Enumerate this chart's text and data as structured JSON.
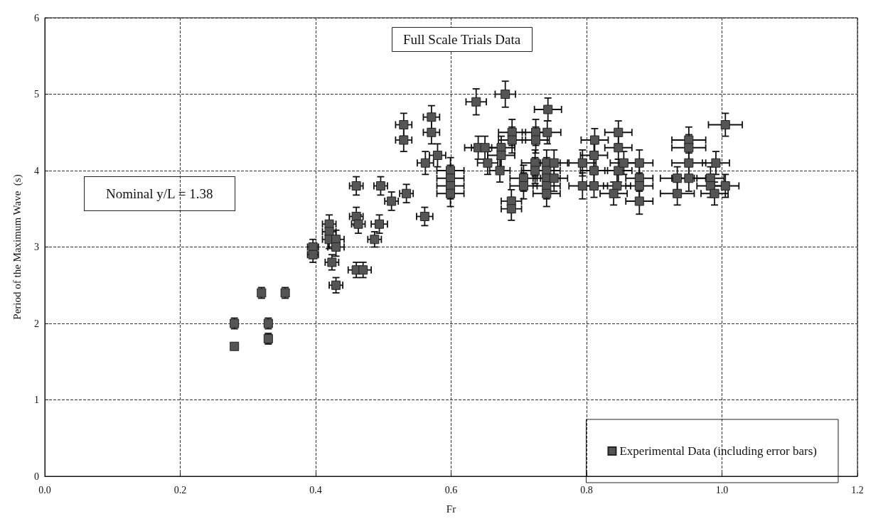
{
  "chart_data": {
    "type": "scatter",
    "title": "Full Scale Trials Data",
    "xlabel": "Fr",
    "ylabel": "Period of the Maximum Wave  (s)",
    "annotations": [
      "Nominal y/L = 1.38"
    ],
    "xlim": [
      0,
      1.2
    ],
    "xticks": [
      {
        "value": 0,
        "label": "0.0"
      },
      {
        "value": 0.2,
        "label": "0.2"
      },
      {
        "value": 0.4,
        "label": "0.4"
      },
      {
        "value": 0.6,
        "label": "0.6"
      },
      {
        "value": 0.8,
        "label": "0.8"
      },
      {
        "value": 1,
        "label": "1.0"
      },
      {
        "value": 1.2,
        "label": "1.2"
      }
    ],
    "ylim": [
      0,
      6
    ],
    "yticks": [
      0,
      1,
      2,
      3,
      4,
      5,
      6
    ],
    "grid": true,
    "legend": "bottom right",
    "marker": "square",
    "series": [
      {
        "name": "Experimental Data (including error bars)",
        "color": "#555555",
        "x": [
          0.28,
          0.28,
          0.32,
          0.33,
          0.33,
          0.355,
          0.396,
          0.396,
          0.42,
          0.42,
          0.42,
          0.43,
          0.43,
          0.424,
          0.43,
          0.46,
          0.47,
          0.46,
          0.463,
          0.494,
          0.487,
          0.46,
          0.496,
          0.512,
          0.534,
          0.53,
          0.53,
          0.571,
          0.571,
          0.58,
          0.562,
          0.599,
          0.599,
          0.599,
          0.599,
          0.561,
          0.637,
          0.68,
          0.64,
          0.65,
          0.654,
          0.674,
          0.674,
          0.672,
          0.69,
          0.69,
          0.707,
          0.707,
          0.689,
          0.689,
          0.725,
          0.725,
          0.724,
          0.724,
          0.743,
          0.742,
          0.741,
          0.741,
          0.741,
          0.741,
          0.741,
          0.752,
          0.752,
          0.794,
          0.794,
          0.812,
          0.811,
          0.811,
          0.811,
          0.847,
          0.847,
          0.847,
          0.855,
          0.845,
          0.84,
          0.878,
          0.878,
          0.878,
          0.878,
          0.934,
          0.934,
          0.951,
          0.951,
          0.951,
          0.951,
          0.991,
          0.983,
          0.983,
          0.989,
          1.005,
          1.005
        ],
        "values": [
          2.0,
          1.7,
          2.4,
          2.0,
          1.8,
          2.4,
          3.0,
          2.9,
          3.3,
          3.2,
          3.1,
          3.1,
          3.0,
          2.8,
          2.5,
          2.7,
          2.7,
          3.4,
          3.3,
          3.3,
          3.1,
          3.8,
          3.8,
          3.6,
          3.7,
          4.6,
          4.4,
          4.7,
          4.5,
          4.2,
          4.1,
          4.0,
          3.9,
          3.8,
          3.7,
          3.4,
          4.9,
          5.0,
          4.3,
          4.3,
          4.1,
          4.3,
          4.2,
          4.0,
          4.5,
          4.4,
          3.9,
          3.8,
          3.6,
          3.5,
          4.5,
          4.4,
          4.1,
          4.0,
          4.8,
          4.5,
          4.1,
          4.0,
          3.9,
          3.8,
          3.7,
          4.1,
          3.9,
          4.1,
          3.8,
          4.4,
          4.2,
          4.0,
          3.8,
          4.5,
          4.3,
          4.0,
          4.1,
          3.8,
          3.7,
          4.1,
          3.9,
          3.8,
          3.6,
          3.9,
          3.7,
          4.4,
          4.3,
          4.1,
          3.9,
          4.1,
          3.9,
          3.8,
          3.7,
          3.8,
          4.6
        ],
        "errors": [
          0.07,
          null,
          0.07,
          0.07,
          0.07,
          0.07,
          0.1,
          0.1,
          0.12,
          0.12,
          0.12,
          0.12,
          0.12,
          0.1,
          0.1,
          0.1,
          0.1,
          0.12,
          0.12,
          0.12,
          0.1,
          0.12,
          0.12,
          0.12,
          0.12,
          0.15,
          0.15,
          0.15,
          0.15,
          0.15,
          0.15,
          0.17,
          0.17,
          0.17,
          0.17,
          0.12,
          0.17,
          0.17,
          0.15,
          0.15,
          0.15,
          0.15,
          0.15,
          0.15,
          0.17,
          0.17,
          0.17,
          0.17,
          0.15,
          0.15,
          0.17,
          0.17,
          0.17,
          0.17,
          0.15,
          0.15,
          0.17,
          0.17,
          0.17,
          0.17,
          0.17,
          0.17,
          0.17,
          0.17,
          0.17,
          0.15,
          0.15,
          0.15,
          0.15,
          0.15,
          0.15,
          0.15,
          0.15,
          0.15,
          0.15,
          0.17,
          0.17,
          0.17,
          0.17,
          0.15,
          0.15,
          0.17,
          0.17,
          0.17,
          0.17,
          0.15,
          0.15,
          0.15,
          0.15,
          0.15,
          0.15
        ],
        "xerrors": [
          0.005,
          null,
          0.005,
          0.005,
          0.005,
          0.005,
          0.008,
          0.008,
          0.01,
          0.01,
          0.01,
          0.012,
          0.012,
          0.01,
          0.01,
          0.012,
          0.012,
          0.01,
          0.01,
          0.012,
          0.01,
          0.01,
          0.01,
          0.01,
          0.01,
          0.012,
          0.012,
          0.012,
          0.012,
          0.012,
          0.012,
          0.02,
          0.02,
          0.02,
          0.02,
          0.012,
          0.015,
          0.015,
          0.02,
          0.02,
          0.015,
          0.02,
          0.02,
          0.015,
          0.02,
          0.02,
          0.02,
          0.02,
          0.015,
          0.015,
          0.02,
          0.02,
          0.02,
          0.02,
          0.02,
          0.02,
          0.02,
          0.02,
          0.02,
          0.02,
          0.02,
          0.02,
          0.02,
          0.02,
          0.02,
          0.02,
          0.02,
          0.02,
          0.02,
          0.02,
          0.02,
          0.02,
          0.02,
          0.02,
          0.02,
          0.02,
          0.02,
          0.02,
          0.02,
          0.025,
          0.025,
          0.025,
          0.025,
          0.025,
          0.025,
          0.02,
          0.02,
          0.02,
          0.02,
          0.02,
          0.025
        ]
      }
    ]
  }
}
